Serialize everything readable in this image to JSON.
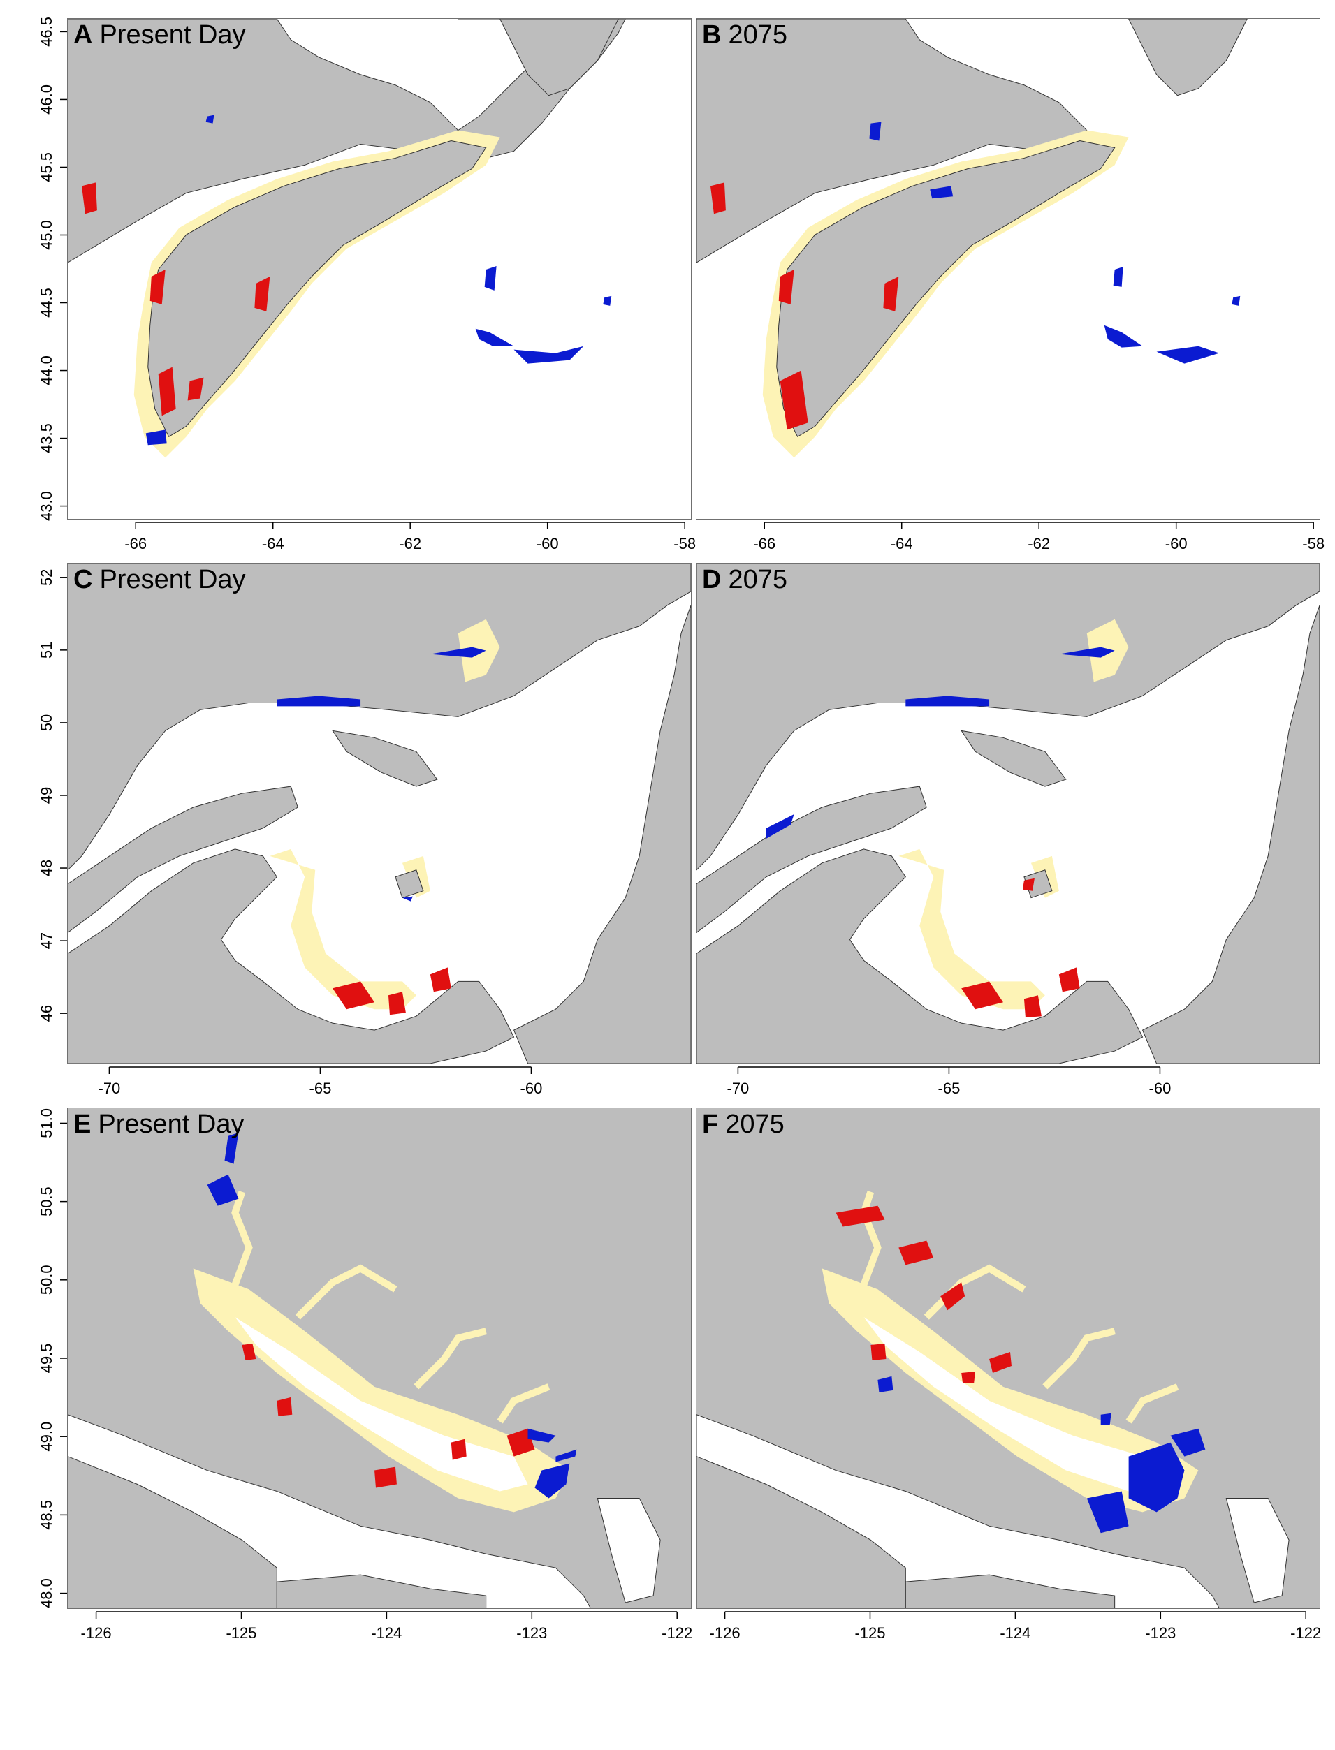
{
  "colors": {
    "land": "#bdbdbd",
    "water": "#ffffff",
    "habitat": "#fdf3b6",
    "gain": "#0b1bd1",
    "loss": "#e01010"
  },
  "panels": [
    {
      "letter": "A",
      "title": "Present Day"
    },
    {
      "letter": "B",
      "title": "2075"
    },
    {
      "letter": "C",
      "title": "Present Day"
    },
    {
      "letter": "D",
      "title": "2075"
    },
    {
      "letter": "E",
      "title": "Present Day"
    },
    {
      "letter": "F",
      "title": "2075"
    }
  ],
  "axes": {
    "row1": {
      "x_ticks": [
        "-66",
        "-64",
        "-62",
        "-60",
        "-58"
      ],
      "y_ticks": [
        "43.0",
        "43.5",
        "44.0",
        "44.5",
        "45.0",
        "45.5",
        "46.0",
        "46.5"
      ],
      "x_range": [
        -67.0,
        -57.9
      ],
      "y_range": [
        42.9,
        46.6
      ]
    },
    "row2": {
      "x_ticks": [
        "-70",
        "-65",
        "-60"
      ],
      "y_ticks": [
        "46",
        "47",
        "48",
        "49",
        "50",
        "51",
        "52"
      ],
      "x_range": [
        -71.0,
        -56.2
      ],
      "y_range": [
        45.3,
        52.2
      ]
    },
    "row3": {
      "x_ticks": [
        "-126",
        "-125",
        "-124",
        "-123",
        "-122"
      ],
      "y_ticks": [
        "48.0",
        "48.5",
        "49.0",
        "49.5",
        "50.0",
        "50.5",
        "51.0"
      ],
      "x_range": [
        -126.2,
        -121.9
      ],
      "y_range": [
        47.9,
        51.1
      ]
    }
  }
}
